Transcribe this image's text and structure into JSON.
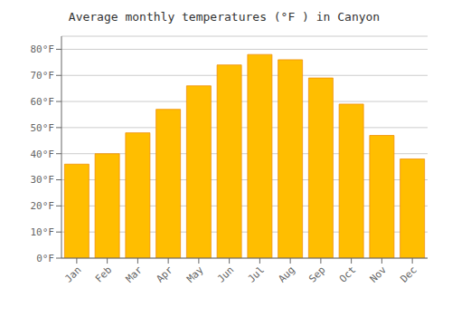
{
  "chart_data": {
    "type": "bar",
    "title": "Average monthly temperatures (°F ) in Canyon",
    "categories": [
      "Jan",
      "Feb",
      "Mar",
      "Apr",
      "May",
      "Jun",
      "Jul",
      "Aug",
      "Sep",
      "Oct",
      "Nov",
      "Dec"
    ],
    "values": [
      36,
      40,
      48,
      57,
      66,
      74,
      78,
      76,
      69,
      59,
      47,
      38
    ],
    "color": "#FFBE00",
    "ylim": [
      0,
      85
    ],
    "yticks": [
      {
        "value": 0,
        "label": "0°F"
      },
      {
        "value": 10,
        "label": "10°F"
      },
      {
        "value": 20,
        "label": "20°F"
      },
      {
        "value": 30,
        "label": "30°F"
      },
      {
        "value": 40,
        "label": "40°F"
      },
      {
        "value": 50,
        "label": "50°F"
      },
      {
        "value": 60,
        "label": "60°F"
      },
      {
        "value": 70,
        "label": "70°F"
      },
      {
        "value": 80,
        "label": "80°F"
      }
    ],
    "grid": true
  }
}
